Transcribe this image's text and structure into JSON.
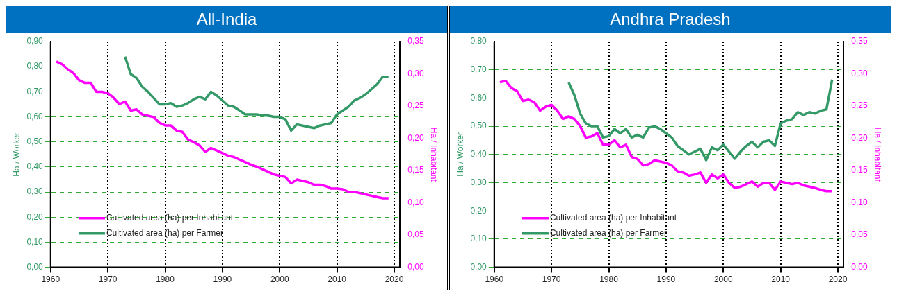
{
  "chart_data": [
    {
      "type": "line",
      "title": "All-India",
      "ylabel": "Ha / Worker",
      "y2label": "Ha / Inhabitant",
      "legend": "bottom left",
      "grid": true,
      "x": [
        1961,
        1962,
        1963,
        1964,
        1965,
        1966,
        1967,
        1968,
        1969,
        1970,
        1971,
        1972,
        1973,
        1974,
        1975,
        1976,
        1977,
        1978,
        1979,
        1980,
        1981,
        1982,
        1983,
        1984,
        1985,
        1986,
        1987,
        1988,
        1989,
        1990,
        1991,
        1992,
        1993,
        1994,
        1995,
        1996,
        1997,
        1998,
        1999,
        2000,
        2001,
        2002,
        2003,
        2004,
        2005,
        2006,
        2007,
        2008,
        2009,
        2010,
        2011,
        2012,
        2013,
        2014,
        2015,
        2016,
        2017,
        2018,
        2019
      ],
      "xlim": [
        1960,
        2021
      ],
      "xticks": [
        1960,
        1970,
        1980,
        1990,
        2000,
        2010,
        2020
      ],
      "ylim": [
        0,
        0.9
      ],
      "yticks": [
        {
          "value": 0,
          "label": "0,00"
        },
        {
          "value": 0.1,
          "label": "0,10"
        },
        {
          "value": 0.2,
          "label": "0,20"
        },
        {
          "value": 0.3,
          "label": "0,30"
        },
        {
          "value": 0.4,
          "label": "0,40"
        },
        {
          "value": 0.5,
          "label": "0,50"
        },
        {
          "value": 0.6,
          "label": "0,60"
        },
        {
          "value": 0.7,
          "label": "0,70"
        },
        {
          "value": 0.8,
          "label": "0,80"
        },
        {
          "value": 0.9,
          "label": "0,90"
        }
      ],
      "y2lim": [
        0,
        0.35
      ],
      "y2ticks": [
        {
          "value": 0,
          "label": "0,00"
        },
        {
          "value": 0.05,
          "label": "0,05"
        },
        {
          "value": 0.1,
          "label": "0,10"
        },
        {
          "value": 0.15,
          "label": "0,15"
        },
        {
          "value": 0.2,
          "label": "0,20"
        },
        {
          "value": 0.25,
          "label": "0,25"
        },
        {
          "value": 0.3,
          "label": "0,30"
        },
        {
          "value": 0.35,
          "label": "0,35"
        }
      ],
      "series": [
        {
          "name": "Cultivated area (ha) per Inhabitant",
          "color": "#ff00ff",
          "axis": "y2",
          "values": [
            0.319,
            0.315,
            0.307,
            0.301,
            0.29,
            0.286,
            0.286,
            0.272,
            0.272,
            0.27,
            0.263,
            0.253,
            0.257,
            0.243,
            0.245,
            0.237,
            0.235,
            0.233,
            0.224,
            0.22,
            0.22,
            0.212,
            0.21,
            0.198,
            0.194,
            0.189,
            0.179,
            0.185,
            0.181,
            0.177,
            0.173,
            0.171,
            0.167,
            0.163,
            0.159,
            0.156,
            0.152,
            0.148,
            0.144,
            0.142,
            0.14,
            0.13,
            0.136,
            0.134,
            0.132,
            0.128,
            0.128,
            0.126,
            0.122,
            0.122,
            0.121,
            0.117,
            0.117,
            0.115,
            0.113,
            0.111,
            0.109,
            0.107,
            0.107
          ]
        },
        {
          "name": "Cultivated area (ha) per Farmer",
          "color": "#339966",
          "values": [
            null,
            null,
            null,
            null,
            null,
            null,
            null,
            null,
            null,
            null,
            null,
            null,
            0.84,
            0.77,
            0.755,
            0.72,
            0.7,
            0.675,
            0.65,
            0.65,
            0.655,
            0.64,
            0.645,
            0.655,
            0.67,
            0.68,
            0.67,
            0.7,
            0.685,
            0.665,
            0.645,
            0.64,
            0.625,
            0.61,
            0.61,
            0.61,
            0.605,
            0.605,
            0.6,
            0.6,
            0.59,
            0.545,
            0.57,
            0.565,
            0.56,
            0.555,
            0.565,
            0.57,
            0.575,
            0.61,
            0.625,
            0.64,
            0.665,
            0.675,
            0.69,
            0.71,
            0.73,
            0.76,
            0.76
          ]
        }
      ]
    },
    {
      "type": "line",
      "title": "Andhra Pradesh",
      "ylabel": "Ha / Worker",
      "y2label": "Ha / Inhabitant",
      "legend": "bottom left",
      "grid": true,
      "x": [
        1961,
        1962,
        1963,
        1964,
        1965,
        1966,
        1967,
        1968,
        1969,
        1970,
        1971,
        1972,
        1973,
        1974,
        1975,
        1976,
        1977,
        1978,
        1979,
        1980,
        1981,
        1982,
        1983,
        1984,
        1985,
        1986,
        1987,
        1988,
        1989,
        1990,
        1991,
        1992,
        1993,
        1994,
        1995,
        1996,
        1997,
        1998,
        1999,
        2000,
        2001,
        2002,
        2003,
        2004,
        2005,
        2006,
        2007,
        2008,
        2009,
        2010,
        2011,
        2012,
        2013,
        2014,
        2015,
        2016,
        2017,
        2018,
        2019
      ],
      "xlim": [
        1960,
        2021
      ],
      "xticks": [
        1960,
        1970,
        1980,
        1990,
        2000,
        2010,
        2020
      ],
      "ylim": [
        0,
        0.8
      ],
      "yticks": [
        {
          "value": 0,
          "label": "0,00"
        },
        {
          "value": 0.1,
          "label": "0,10"
        },
        {
          "value": 0.2,
          "label": "0,20"
        },
        {
          "value": 0.3,
          "label": "0,30"
        },
        {
          "value": 0.4,
          "label": "0,40"
        },
        {
          "value": 0.5,
          "label": "0,50"
        },
        {
          "value": 0.6,
          "label": "0,60"
        },
        {
          "value": 0.7,
          "label": "0,70"
        },
        {
          "value": 0.8,
          "label": "0,80"
        }
      ],
      "y2lim": [
        0,
        0.35
      ],
      "y2ticks": [
        {
          "value": 0,
          "label": "0,00"
        },
        {
          "value": 0.05,
          "label": "0,05"
        },
        {
          "value": 0.1,
          "label": "0,10"
        },
        {
          "value": 0.15,
          "label": "0,15"
        },
        {
          "value": 0.2,
          "label": "0,20"
        },
        {
          "value": 0.25,
          "label": "0,25"
        },
        {
          "value": 0.3,
          "label": "0,30"
        },
        {
          "value": 0.35,
          "label": "0,35"
        }
      ],
      "series": [
        {
          "name": "Cultivated area (ha) per Inhabitant",
          "color": "#ff00ff",
          "axis": "y2",
          "values": [
            0.287,
            0.289,
            0.278,
            0.273,
            0.258,
            0.26,
            0.256,
            0.243,
            0.249,
            0.252,
            0.243,
            0.23,
            0.234,
            0.23,
            0.219,
            0.201,
            0.203,
            0.208,
            0.19,
            0.19,
            0.197,
            0.186,
            0.19,
            0.171,
            0.168,
            0.158,
            0.16,
            0.166,
            0.164,
            0.162,
            0.158,
            0.149,
            0.147,
            0.142,
            0.144,
            0.147,
            0.131,
            0.144,
            0.138,
            0.144,
            0.131,
            0.123,
            0.125,
            0.129,
            0.133,
            0.125,
            0.131,
            0.131,
            0.12,
            0.133,
            0.131,
            0.129,
            0.131,
            0.127,
            0.125,
            0.123,
            0.12,
            0.118,
            0.118
          ]
        },
        {
          "name": "Cultivated area (ha) per Farmer",
          "color": "#339966",
          "values": [
            null,
            null,
            null,
            null,
            null,
            null,
            null,
            null,
            null,
            null,
            null,
            null,
            0.655,
            0.61,
            0.545,
            0.51,
            0.5,
            0.5,
            0.46,
            0.465,
            0.49,
            0.475,
            0.49,
            0.46,
            0.47,
            0.46,
            0.495,
            0.5,
            0.49,
            0.475,
            0.46,
            0.43,
            0.415,
            0.4,
            0.41,
            0.42,
            0.38,
            0.425,
            0.415,
            0.435,
            0.41,
            0.385,
            0.41,
            0.43,
            0.445,
            0.425,
            0.445,
            0.45,
            0.43,
            0.51,
            0.52,
            0.525,
            0.55,
            0.54,
            0.55,
            0.545,
            0.555,
            0.56,
            0.665
          ]
        }
      ]
    }
  ]
}
